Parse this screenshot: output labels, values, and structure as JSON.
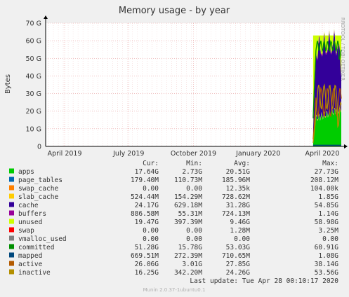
{
  "chart_data": {
    "type": "area",
    "title": "Memory usage - by year",
    "ylabel": "Bytes",
    "side_label": "RRDTOOL / TOBI OETIKER",
    "ylim": [
      0,
      70
    ],
    "y_unit": "G",
    "y_ticks": [
      "0",
      "10 G",
      "20 G",
      "30 G",
      "40 G",
      "50 G",
      "60 G",
      "70 G"
    ],
    "x_ticks": [
      {
        "label": "April 2019",
        "date": "2019-04-01"
      },
      {
        "label": "July 2019",
        "date": "2019-07-01"
      },
      {
        "label": "October 2019",
        "date": "2019-10-01"
      },
      {
        "label": "January 2020",
        "date": "2020-01-01"
      },
      {
        "label": "April 2020",
        "date": "2020-04-01"
      }
    ],
    "x_range": [
      "2019-03-05",
      "2020-04-28"
    ],
    "grid": true,
    "legend_headers": {
      "cur": "Cur:",
      "min": "Min:",
      "avg": "Avg:",
      "max": "Max:"
    },
    "series": [
      {
        "name": "apps",
        "color": "#00cc00",
        "cur": "17.64G",
        "min": "2.73G",
        "avg": "20.51G",
        "max": "27.73G"
      },
      {
        "name": "page_tables",
        "color": "#0066b3",
        "cur": "179.40M",
        "min": "110.73M",
        "avg": "185.96M",
        "max": "208.12M"
      },
      {
        "name": "swap_cache",
        "color": "#ff8000",
        "cur": "0.00",
        "min": "0.00",
        "avg": "12.35k",
        "max": "104.00k"
      },
      {
        "name": "slab_cache",
        "color": "#ffcc00",
        "cur": "524.44M",
        "min": "154.29M",
        "avg": "728.62M",
        "max": "1.85G"
      },
      {
        "name": "cache",
        "color": "#330099",
        "cur": "24.17G",
        "min": "629.18M",
        "avg": "31.28G",
        "max": "54.85G"
      },
      {
        "name": "buffers",
        "color": "#990099",
        "cur": "886.58M",
        "min": "55.31M",
        "avg": "724.13M",
        "max": "1.14G"
      },
      {
        "name": "unused",
        "color": "#ccff00",
        "cur": "19.47G",
        "min": "397.39M",
        "avg": "9.46G",
        "max": "58.98G"
      },
      {
        "name": "swap",
        "color": "#ff0000",
        "cur": "0.00",
        "min": "0.00",
        "avg": "1.28M",
        "max": "3.25M"
      },
      {
        "name": "vmalloc_used",
        "color": "#808080",
        "cur": "0.00",
        "min": "0.00",
        "avg": "0.00",
        "max": "0.00"
      },
      {
        "name": "committed",
        "color": "#008f00",
        "cur": "51.28G",
        "min": "15.78G",
        "avg": "53.03G",
        "max": "60.91G"
      },
      {
        "name": "mapped",
        "color": "#00487d",
        "cur": "669.51M",
        "min": "272.39M",
        "avg": "710.65M",
        "max": "1.08G"
      },
      {
        "name": "active",
        "color": "#b35a00",
        "cur": "26.06G",
        "min": "3.01G",
        "avg": "27.85G",
        "max": "38.14G"
      },
      {
        "name": "inactive",
        "color": "#b38f00",
        "cur": "16.25G",
        "min": "342.20M",
        "avg": "24.26G",
        "max": "53.56G"
      }
    ],
    "last_update": "Last update: Tue Apr 28 00:10:17 2020",
    "footer": "Munin 2.0.37-1ubuntu0.1"
  }
}
